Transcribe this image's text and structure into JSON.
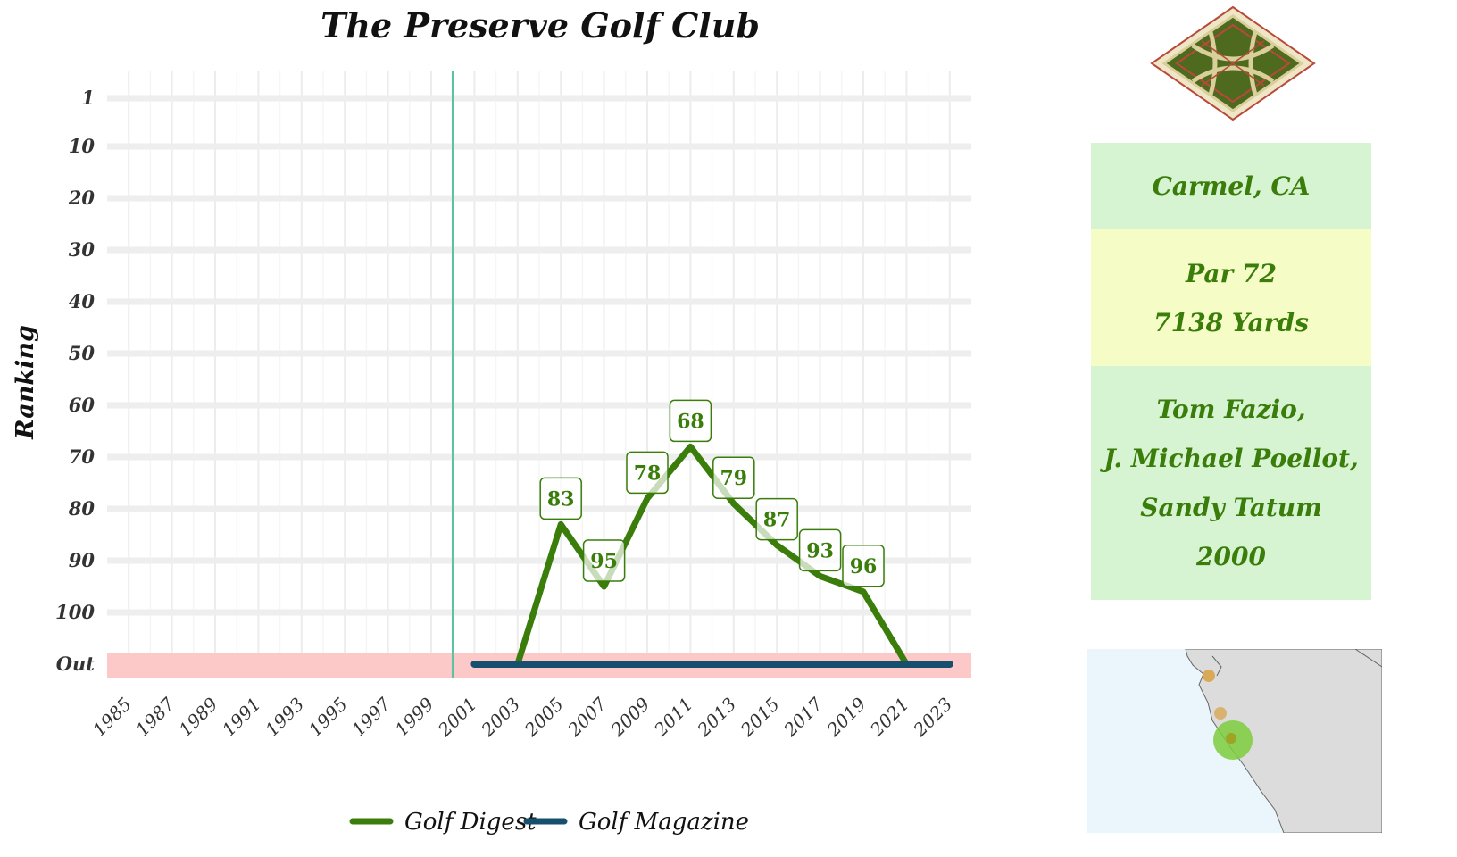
{
  "chart_data": {
    "type": "line",
    "title": "The Preserve Golf Club",
    "ylabel": "Ranking",
    "xlabel": "",
    "x_ticks": [
      1985,
      1987,
      1989,
      1991,
      1993,
      1995,
      1997,
      1999,
      2001,
      2003,
      2005,
      2007,
      2009,
      2011,
      2013,
      2015,
      2017,
      2019,
      2021,
      2023
    ],
    "y_ticks": [
      "1",
      "10",
      "20",
      "30",
      "40",
      "50",
      "60",
      "70",
      "80",
      "90",
      "100",
      "Out"
    ],
    "y_scale": "reversed",
    "grid": true,
    "out_band_color": "#fcc8c8",
    "vline_year": 2000,
    "vline_color": "#5cc3a0",
    "series": [
      {
        "name": "Golf Digest",
        "color": "#3a7d0a",
        "points": [
          {
            "x": 2003,
            "y": "Out"
          },
          {
            "x": 2005,
            "y": 83
          },
          {
            "x": 2007,
            "y": 95
          },
          {
            "x": 2009,
            "y": 78
          },
          {
            "x": 2011,
            "y": 68
          },
          {
            "x": 2013,
            "y": 79
          },
          {
            "x": 2015,
            "y": 87
          },
          {
            "x": 2017,
            "y": 93
          },
          {
            "x": 2019,
            "y": 96
          },
          {
            "x": 2021,
            "y": "Out"
          }
        ],
        "labels": [
          {
            "x": 2005,
            "y": 83,
            "text": "83"
          },
          {
            "x": 2007,
            "y": 95,
            "text": "95"
          },
          {
            "x": 2009,
            "y": 78,
            "text": "78"
          },
          {
            "x": 2011,
            "y": 68,
            "text": "68"
          },
          {
            "x": 2013,
            "y": 79,
            "text": "79"
          },
          {
            "x": 2015,
            "y": 87,
            "text": "87"
          },
          {
            "x": 2017,
            "y": 93,
            "text": "93"
          },
          {
            "x": 2019,
            "y": 96,
            "text": "96"
          }
        ]
      },
      {
        "name": "Golf Magazine",
        "color": "#17506e",
        "points": [
          {
            "x": 2001,
            "y": "Out"
          },
          {
            "x": 2023,
            "y": "Out"
          }
        ]
      }
    ],
    "legend": {
      "placement": "bottom"
    }
  },
  "info": {
    "location": "Carmel, CA",
    "par": "Par 72",
    "yards": "7138 Yards",
    "architects": [
      "Tom Fazio,",
      "J. Michael Poellot,",
      "Sandy Tatum",
      "2000"
    ],
    "colors": {
      "green_panel": "#d6f3d2",
      "yellow_panel": "#f6fcc6",
      "text": "#3a7d0a"
    }
  },
  "logo": {
    "icon": "club-crest-icon",
    "colors": [
      "#4e6a1e",
      "#d8cf9a",
      "#b84a3a"
    ]
  },
  "map": {
    "icon": "california-coast-map",
    "colors": {
      "sea": "#eaf5fc",
      "land": "#dcdcdc",
      "highlight": "#7ccc3c",
      "others": "#d9a040"
    }
  }
}
